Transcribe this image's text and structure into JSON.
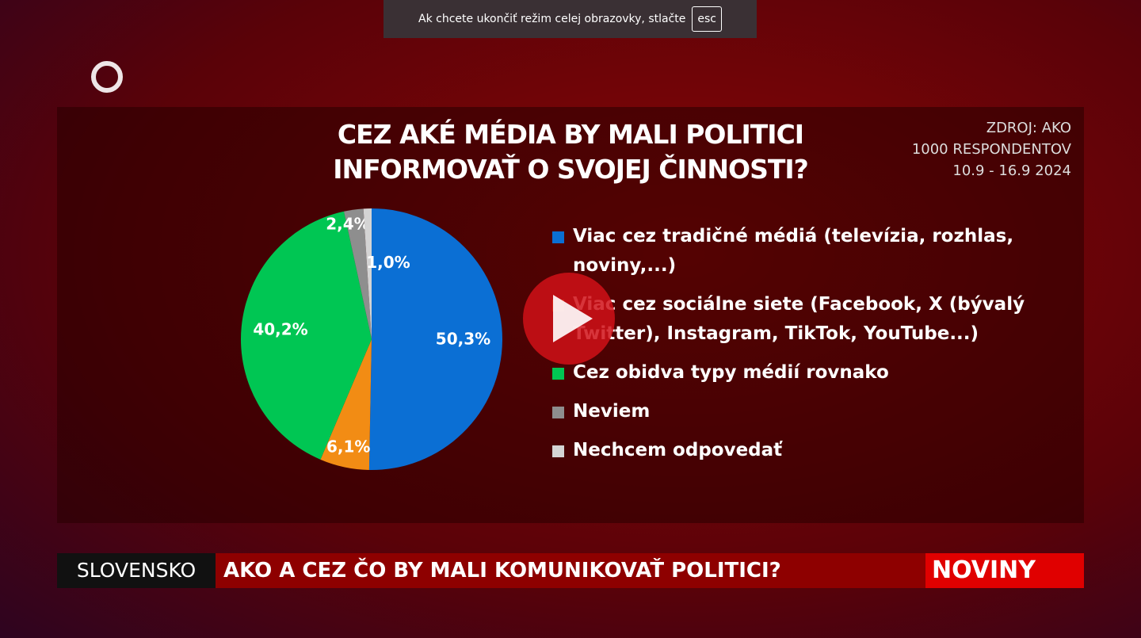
{
  "overlay": {
    "message": "Ak chcete ukončiť režim celej obrazovky, stlačte",
    "key": "esc"
  },
  "chart_data": {
    "type": "pie",
    "title": "CEZ AKÉ MÉDIA BY MALI POLITICI INFORMOVAŤ O SVOJEJ ČINNOSTI?",
    "source": [
      "ZDROJ: AKO",
      "1000 RESPONDENTOV",
      "10.9 - 16.9 2024"
    ],
    "categories": [
      "Viac cez tradičné médiá (televízia, rozhlas, noviny,...)",
      "Viac cez sociálne siete (Facebook, X (bývalý Twitter), Instagram, TikTok, YouTube...)",
      "Cez obidva typy médií rovnako",
      "Neviem",
      "Nechcem odpovedať"
    ],
    "values": [
      50.3,
      6.1,
      40.2,
      2.4,
      1.0
    ],
    "value_labels": [
      "50,3%",
      "6,1%",
      "40,2%",
      "2,4%",
      "1,0%"
    ],
    "colors": [
      "#0b6fd4",
      "#f28c14",
      "#00c653",
      "#8e8e8e",
      "#d4d4d4"
    ]
  },
  "ticker": {
    "section": "SLOVENSKO",
    "headline": "AKO A CEZ ČO BY MALI KOMUNIKOVAŤ POLITICI?",
    "brand": "NOVINY"
  }
}
